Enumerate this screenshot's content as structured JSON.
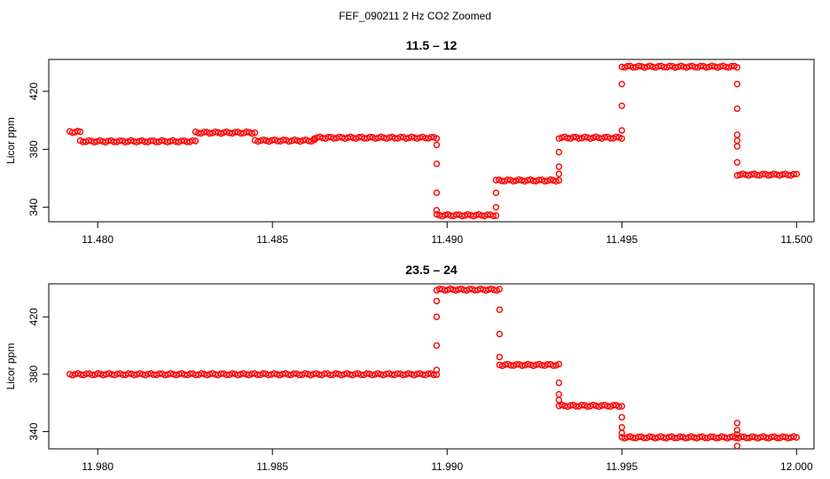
{
  "figure": {
    "title": "FEF_090211  2 Hz CO2 Zoomed"
  },
  "chart_data": [
    {
      "type": "scatter",
      "title": "11.5 – 12",
      "xlabel": "",
      "ylabel": "Licor ppm",
      "xlim": [
        11.4786,
        11.5005
      ],
      "ylim": [
        330,
        442
      ],
      "xticks": [
        11.48,
        11.485,
        11.49,
        11.495,
        11.5
      ],
      "xtick_labels": [
        "11.480",
        "11.485",
        "11.490",
        "11.495",
        "11.500"
      ],
      "yticks": [
        340,
        380,
        420
      ],
      "ytick_labels": [
        "340",
        "380",
        "420"
      ],
      "marker": "open circle",
      "color": "#ff0000",
      "grid": false,
      "segments": [
        {
          "x0": 11.4792,
          "x1": 11.4795,
          "y": 392
        },
        {
          "x0": 11.4795,
          "x1": 11.4828,
          "y": 385.5
        },
        {
          "x0": 11.4828,
          "x1": 11.4845,
          "y": 391.5
        },
        {
          "x0": 11.4845,
          "x1": 11.4862,
          "y": 386
        },
        {
          "x0": 11.4862,
          "x1": 11.4897,
          "y": 388
        },
        {
          "x0": 11.4897,
          "x1": 11.4914,
          "y": 334.5
        },
        {
          "x0": 11.4914,
          "x1": 11.4932,
          "y": 358.5
        },
        {
          "x0": 11.4932,
          "x1": 11.495,
          "y": 388
        },
        {
          "x0": 11.495,
          "x1": 11.4983,
          "y": 437
        },
        {
          "x0": 11.4983,
          "x1": 11.5,
          "y": 362.5
        }
      ],
      "transition_points": [
        [
          11.4897,
          383
        ],
        [
          11.4897,
          370
        ],
        [
          11.4897,
          350
        ],
        [
          11.4897,
          338
        ],
        [
          11.4914,
          340
        ],
        [
          11.4914,
          350
        ],
        [
          11.4932,
          363
        ],
        [
          11.4932,
          368
        ],
        [
          11.4932,
          378
        ],
        [
          11.495,
          393
        ],
        [
          11.495,
          410
        ],
        [
          11.495,
          425
        ],
        [
          11.4983,
          425
        ],
        [
          11.4983,
          408
        ],
        [
          11.4983,
          390
        ],
        [
          11.4983,
          386
        ],
        [
          11.4983,
          382
        ],
        [
          11.4983,
          371
        ]
      ]
    },
    {
      "type": "scatter",
      "title": "23.5 – 24",
      "xlabel": "",
      "ylabel": "Licor ppm",
      "xlim": [
        11.9786,
        12.0005
      ],
      "ylim": [
        328,
        443
      ],
      "xticks": [
        11.98,
        11.985,
        11.99,
        11.995,
        12.0
      ],
      "xtick_labels": [
        "11.980",
        "11.985",
        "11.990",
        "11.995",
        "12.000"
      ],
      "yticks": [
        340,
        380,
        420
      ],
      "ytick_labels": [
        "340",
        "380",
        "420"
      ],
      "marker": "open circle",
      "color": "#ff0000",
      "grid": false,
      "segments": [
        {
          "x0": 11.9792,
          "x1": 11.9897,
          "y": 380
        },
        {
          "x0": 11.9897,
          "x1": 11.9915,
          "y": 439
        },
        {
          "x0": 11.9915,
          "x1": 11.9932,
          "y": 386.5
        },
        {
          "x0": 11.9932,
          "x1": 11.995,
          "y": 358
        },
        {
          "x0": 11.995,
          "x1": 12.0,
          "y": 336
        }
      ],
      "transition_points": [
        [
          11.9897,
          383
        ],
        [
          11.9897,
          400
        ],
        [
          11.9897,
          420
        ],
        [
          11.9897,
          431
        ],
        [
          11.9915,
          425
        ],
        [
          11.9915,
          408
        ],
        [
          11.9915,
          392
        ],
        [
          11.9932,
          374
        ],
        [
          11.9932,
          366
        ],
        [
          11.9932,
          362
        ],
        [
          11.995,
          350
        ],
        [
          11.995,
          343
        ],
        [
          11.995,
          339
        ],
        [
          11.9983,
          346
        ],
        [
          11.9983,
          341
        ],
        [
          11.9983,
          338
        ],
        [
          11.9983,
          330
        ]
      ]
    }
  ]
}
